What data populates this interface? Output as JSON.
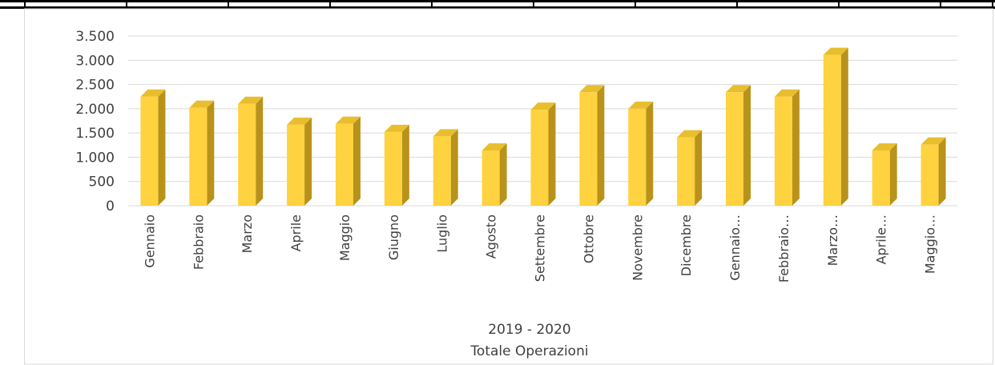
{
  "chart_data": {
    "type": "bar",
    "style": "3d-column",
    "categories": [
      "Gennaio",
      "Febbraio",
      "Marzo",
      "Aprile",
      "Maggio",
      "Giugno",
      "Luglio",
      "Agosto",
      "Settembre",
      "Ottobre",
      "Novembre",
      "Dicembre",
      "Gennaio…",
      "Febbraio…",
      "Marzo…",
      "Aprile…",
      "Maggio…"
    ],
    "values": [
      2250,
      2020,
      2100,
      1670,
      1690,
      1520,
      1430,
      1140,
      1980,
      2340,
      2000,
      1410,
      2340,
      2250,
      3110,
      1140,
      1260
    ],
    "ylim": [
      0,
      3500
    ],
    "yticks": [
      0,
      500,
      1000,
      1500,
      2000,
      2500,
      3000,
      3500
    ],
    "ytick_labels": [
      "0",
      "500",
      "1.000",
      "1.500",
      "2.000",
      "2.500",
      "3.000",
      "3.500"
    ],
    "xlabel": "2019 - 2020",
    "subtitle": "Totale Operazioni",
    "grid": true,
    "colors": {
      "bar_front": "#FFD23F",
      "bar_side": "#B8921A",
      "bar_top": "#E8BE2E",
      "grid": "#D9D9D9"
    }
  }
}
